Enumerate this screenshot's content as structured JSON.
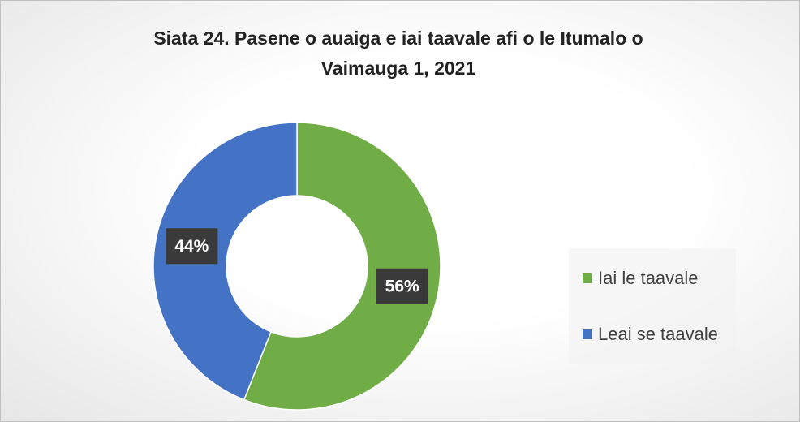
{
  "chart_data": {
    "type": "donut",
    "title": "Siata 24. Pasene o auaiga e iai taavale afi o le Itumalo o Vaimauga 1, 2021",
    "categories": [
      "Iai le taavale",
      "Leai se taavale"
    ],
    "values": [
      56,
      44
    ],
    "value_labels": [
      "56%",
      "44%"
    ],
    "colors": [
      "#70ad47",
      "#4472c4"
    ],
    "legend": "right"
  }
}
